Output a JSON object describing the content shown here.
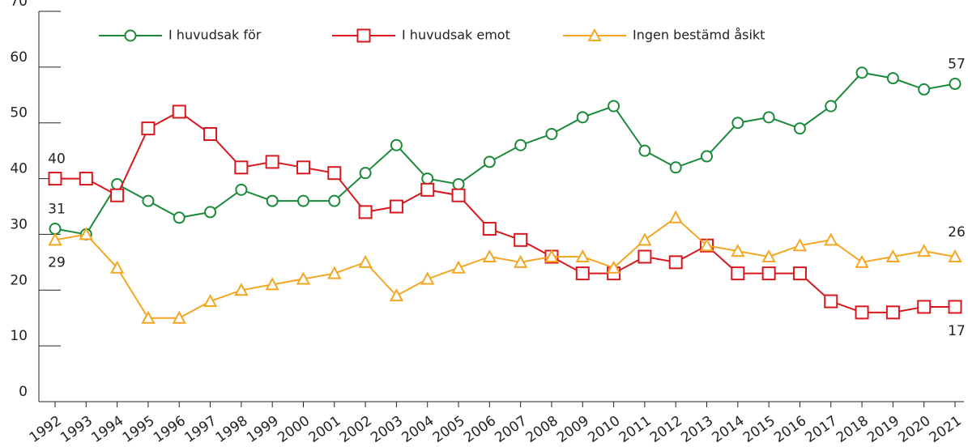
{
  "chart_data": {
    "type": "line",
    "categories": [
      "1992",
      "1993",
      "1994",
      "1995",
      "1996",
      "1997",
      "1998",
      "1999",
      "2000",
      "2001",
      "2002",
      "2003",
      "2004",
      "2005",
      "2006",
      "2007",
      "2008",
      "2009",
      "2010",
      "2011",
      "2012",
      "2013",
      "2014",
      "2015",
      "2016",
      "2017",
      "2018",
      "2019",
      "2020",
      "2021"
    ],
    "series": [
      {
        "name": "I huvudsak för",
        "color": "#1a8a3a",
        "marker": "circle",
        "values": [
          31,
          30,
          39,
          36,
          33,
          34,
          38,
          36,
          36,
          36,
          41,
          46,
          40,
          39,
          43,
          46,
          48,
          51,
          53,
          45,
          42,
          44,
          50,
          51,
          49,
          53,
          59,
          58,
          56,
          57
        ]
      },
      {
        "name": "I huvudsak emot",
        "color": "#d7191f",
        "marker": "square",
        "values": [
          40,
          40,
          37,
          49,
          52,
          48,
          42,
          43,
          42,
          41,
          34,
          35,
          38,
          37,
          31,
          29,
          26,
          23,
          23,
          26,
          25,
          28,
          23,
          23,
          23,
          18,
          16,
          16,
          17,
          17
        ]
      },
      {
        "name": "Ingen bestämd åsikt",
        "color": "#f5a623",
        "marker": "triangle",
        "values": [
          29,
          30,
          24,
          15,
          15,
          18,
          20,
          21,
          22,
          23,
          25,
          19,
          22,
          24,
          26,
          25,
          26,
          26,
          24,
          29,
          33,
          28,
          27,
          26,
          28,
          29,
          25,
          26,
          27,
          26
        ]
      }
    ],
    "ylim": [
      0,
      70
    ],
    "yticks": [
      0,
      10,
      20,
      30,
      40,
      50,
      60,
      70
    ]
  }
}
